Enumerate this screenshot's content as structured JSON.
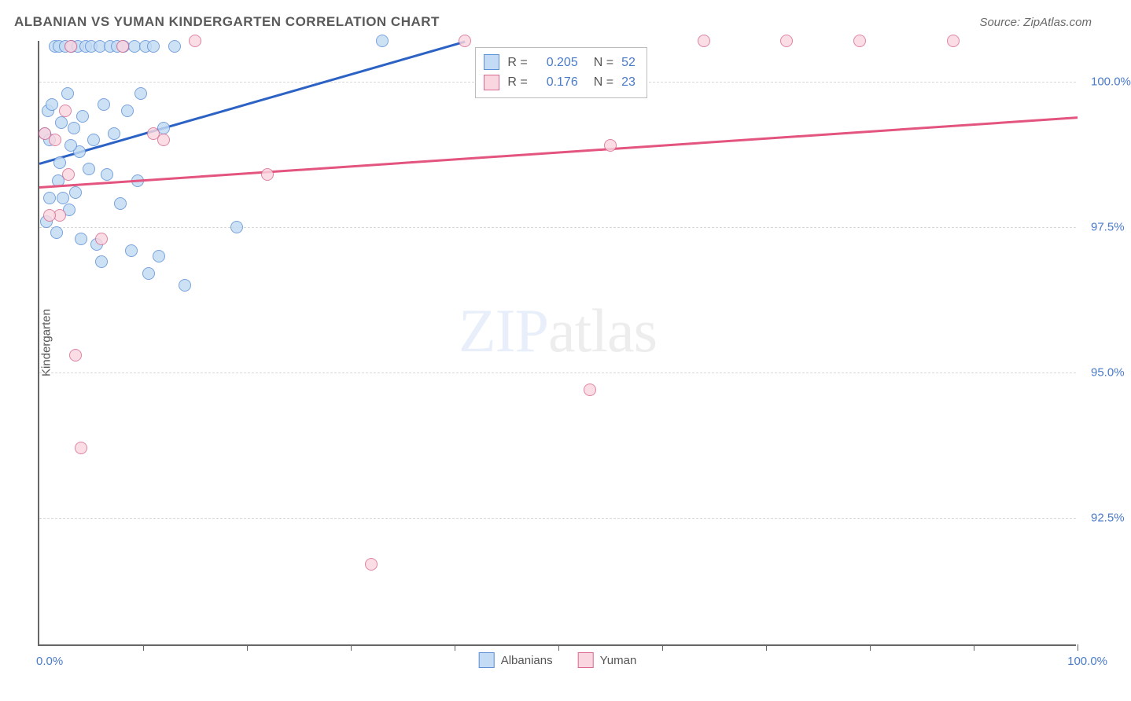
{
  "title": "ALBANIAN VS YUMAN KINDERGARTEN CORRELATION CHART",
  "source": "Source: ZipAtlas.com",
  "watermark_zip": "ZIP",
  "watermark_atlas": "atlas",
  "watermark_zip_color": "#b9d0f0",
  "watermark_atlas_color": "#c8c8c8",
  "yaxis_title": "Kindergarten",
  "xaxis": {
    "min": 0,
    "max": 100,
    "label_min": "0.0%",
    "label_max": "100.0%",
    "tick_positions": [
      10,
      20,
      30,
      40,
      50,
      60,
      70,
      80,
      90,
      100
    ]
  },
  "yaxis": {
    "min": 90.3,
    "max": 100.7,
    "gridlines": [
      92.5,
      95.0,
      97.5,
      100.0
    ],
    "labels": [
      "92.5%",
      "95.0%",
      "97.5%",
      "100.0%"
    ]
  },
  "series": [
    {
      "name": "Albanians",
      "fill": "#c3dbf4",
      "stroke": "#5b8fd6",
      "line_color": "#2b62c4",
      "marker_r": 8,
      "R": "0.205",
      "N": "52",
      "trend": {
        "x1": 0,
        "y1": 98.6,
        "x2": 41,
        "y2": 100.7
      },
      "points": [
        [
          0.5,
          99.1
        ],
        [
          0.8,
          99.5
        ],
        [
          1.0,
          99.0
        ],
        [
          1.2,
          99.6
        ],
        [
          1.5,
          100.6
        ],
        [
          1.8,
          98.3
        ],
        [
          1.9,
          100.6
        ],
        [
          2.1,
          99.3
        ],
        [
          2.3,
          98.0
        ],
        [
          2.5,
          100.6
        ],
        [
          2.7,
          99.8
        ],
        [
          2.9,
          97.8
        ],
        [
          3.1,
          100.6
        ],
        [
          3.3,
          99.2
        ],
        [
          3.5,
          98.1
        ],
        [
          3.7,
          100.6
        ],
        [
          3.9,
          98.8
        ],
        [
          4.2,
          99.4
        ],
        [
          4.5,
          100.6
        ],
        [
          4.8,
          98.5
        ],
        [
          5.0,
          100.6
        ],
        [
          5.2,
          99.0
        ],
        [
          5.5,
          97.2
        ],
        [
          5.8,
          100.6
        ],
        [
          6.2,
          99.6
        ],
        [
          6.5,
          98.4
        ],
        [
          6.8,
          100.6
        ],
        [
          7.2,
          99.1
        ],
        [
          7.5,
          100.6
        ],
        [
          7.8,
          97.9
        ],
        [
          8.1,
          100.6
        ],
        [
          8.5,
          99.5
        ],
        [
          8.9,
          97.1
        ],
        [
          9.2,
          100.6
        ],
        [
          9.5,
          98.3
        ],
        [
          9.8,
          99.8
        ],
        [
          10.2,
          100.6
        ],
        [
          10.5,
          96.7
        ],
        [
          11.0,
          100.6
        ],
        [
          11.5,
          97.0
        ],
        [
          12.0,
          99.2
        ],
        [
          13.0,
          100.6
        ],
        [
          14.0,
          96.5
        ],
        [
          19.0,
          97.5
        ],
        [
          33.0,
          100.7
        ],
        [
          1.0,
          98.0
        ],
        [
          1.7,
          97.4
        ],
        [
          2.0,
          98.6
        ],
        [
          4.0,
          97.3
        ],
        [
          6.0,
          96.9
        ],
        [
          3.0,
          98.9
        ],
        [
          0.7,
          97.6
        ]
      ]
    },
    {
      "name": "Yuman",
      "fill": "#f9d6e0",
      "stroke": "#d96a8f",
      "line_color": "#e3547e",
      "marker_r": 8,
      "R": "0.176",
      "N": "23",
      "trend": {
        "x1": 0,
        "y1": 98.2,
        "x2": 100,
        "y2": 99.4
      },
      "points": [
        [
          1.5,
          99.0
        ],
        [
          2.0,
          97.7
        ],
        [
          2.5,
          99.5
        ],
        [
          3.0,
          100.6
        ],
        [
          6.0,
          97.3
        ],
        [
          8.0,
          100.6
        ],
        [
          11.0,
          99.1
        ],
        [
          15.0,
          100.7
        ],
        [
          22.0,
          98.4
        ],
        [
          41.0,
          100.7
        ],
        [
          53.0,
          94.7
        ],
        [
          55.0,
          98.9
        ],
        [
          64.0,
          100.7
        ],
        [
          72.0,
          100.7
        ],
        [
          79.0,
          100.7
        ],
        [
          88.0,
          100.7
        ],
        [
          0.5,
          99.1
        ],
        [
          1.0,
          97.7
        ],
        [
          3.5,
          95.3
        ],
        [
          4.0,
          93.7
        ],
        [
          32.0,
          91.7
        ],
        [
          12.0,
          99.0
        ],
        [
          2.8,
          98.4
        ]
      ]
    }
  ],
  "legend_box": {
    "left_pct": 42,
    "top_pct": 1
  },
  "x_legend": [
    {
      "label": "Albanians",
      "fill": "#c3dbf4",
      "stroke": "#5b8fd6"
    },
    {
      "label": "Yuman",
      "fill": "#f9d6e0",
      "stroke": "#d96a8f"
    }
  ],
  "bg_color": "#ffffff",
  "grid_color": "#d8d8d8",
  "axis_color": "#666666",
  "tick_label_color": "#4a7bc8"
}
